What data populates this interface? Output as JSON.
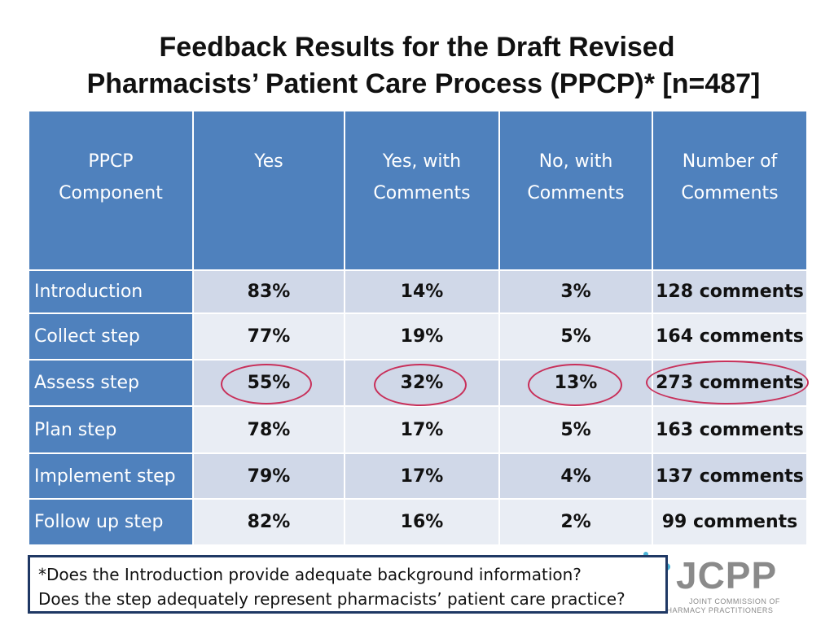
{
  "title": {
    "line1": "Feedback Results for the Draft Revised",
    "line2": "Pharmacists’ Patient Care Process (PPCP)*  [n=487]"
  },
  "table": {
    "headers": [
      [
        "PPCP",
        "Component"
      ],
      [
        "Yes",
        ""
      ],
      [
        "Yes, with",
        "Comments"
      ],
      [
        "No, with",
        "Comments"
      ],
      [
        "Number of",
        "Comments"
      ]
    ],
    "rows": [
      {
        "component": "Introduction",
        "yes": "83%",
        "yes_with": "14%",
        "no_with": "3%",
        "comments": "128 comments"
      },
      {
        "component": "Collect step",
        "yes": "77%",
        "yes_with": "19%",
        "no_with": "5%",
        "comments": "164 comments"
      },
      {
        "component": "Assess step",
        "yes": "55%",
        "yes_with": "32%",
        "no_with": "13%",
        "comments": "273 comments"
      },
      {
        "component": "Plan step",
        "yes": "78%",
        "yes_with": "17%",
        "no_with": "5%",
        "comments": "163 comments"
      },
      {
        "component": "Implement step",
        "yes": "79%",
        "yes_with": "17%",
        "no_with": "4%",
        "comments": "137 comments"
      },
      {
        "component": "Follow up step",
        "yes": "82%",
        "yes_with": "16%",
        "no_with": "2%",
        "comments": "99 comments"
      }
    ]
  },
  "footnote": {
    "line1": "*Does the Introduction provide adequate background information?",
    "line2": "Does the step adequately represent pharmacists’ patient care practice?"
  },
  "logo": {
    "mark": "JCPP",
    "sub_line1": "JOINT COMMISSION OF",
    "sub_line2": "PHARMACY PRACTITIONERS"
  },
  "colors": {
    "header_blue": "#4f81bd",
    "row_light": "#e9edf4",
    "row_mid": "#d0d8e8",
    "highlight": "#c8305a",
    "footnote_border": "#1f3864"
  }
}
